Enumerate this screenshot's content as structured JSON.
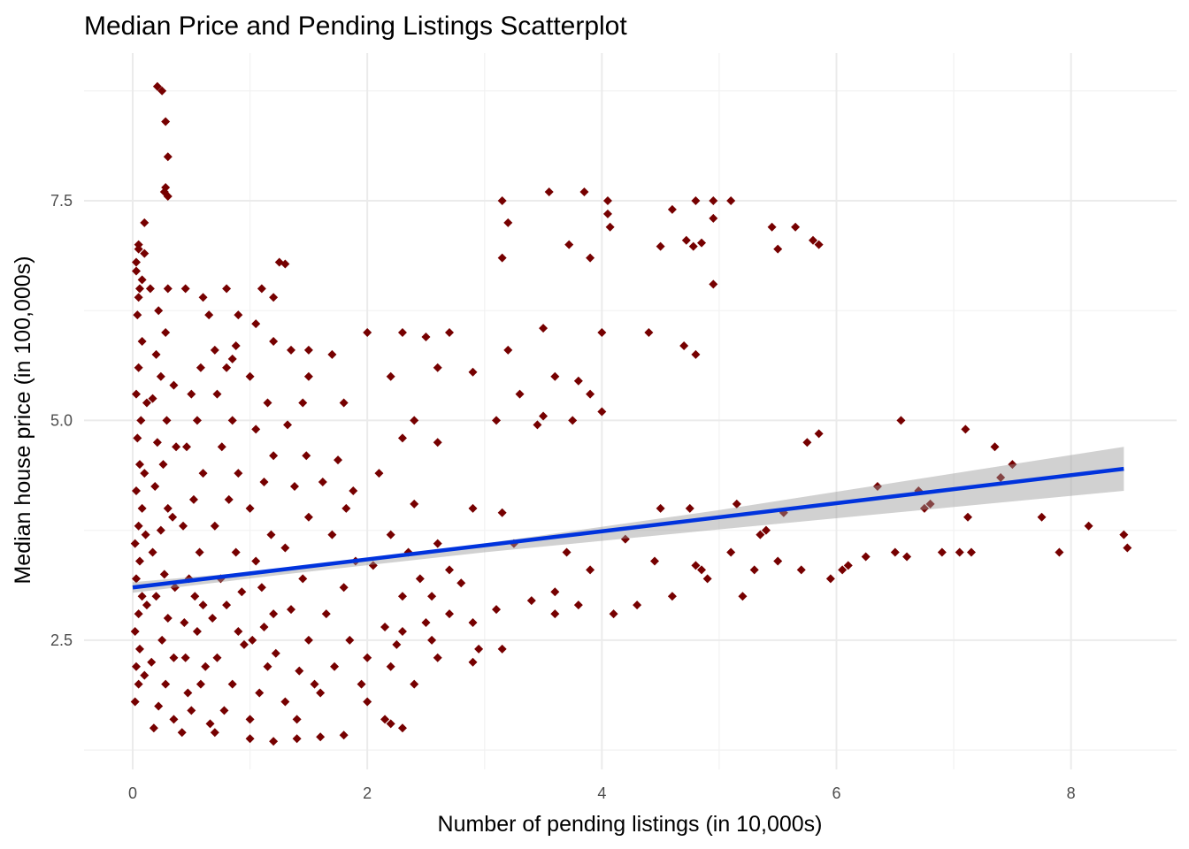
{
  "chart_data": {
    "type": "scatter",
    "title": "Median Price and Pending Listings Scatterplot",
    "xlabel": "Number of pending listings (in 10,000s)",
    "ylabel": "Median house price (in 100,000s)",
    "xlim": [
      -0.415,
      8.9
    ],
    "ylim": [
      1.03,
      9.18
    ],
    "x_ticks": [
      0,
      2,
      4,
      6,
      8
    ],
    "x_tick_labels": [
      "0",
      "2",
      "4",
      "6",
      "8"
    ],
    "x_minor": [
      1,
      3,
      5,
      7
    ],
    "y_ticks": [
      2.5,
      5.0,
      7.5
    ],
    "y_tick_labels": [
      "2.5",
      "5.0",
      "7.5"
    ],
    "y_minor": [
      1.25,
      3.75,
      6.25,
      8.75
    ],
    "grid": true,
    "legend": "none",
    "point_color": "#760000",
    "line_color": "#0033dd",
    "band_color": "#999999",
    "regression": {
      "x": [
        0,
        8.45
      ],
      "y": [
        3.1,
        4.45
      ]
    },
    "confidence_band": [
      [
        0,
        3.04,
        3.16
      ],
      [
        1.3,
        3.25,
        3.31
      ],
      [
        3,
        3.5,
        3.6
      ],
      [
        5,
        3.76,
        3.98
      ],
      [
        8.45,
        4.2,
        4.7
      ]
    ],
    "points": [
      [
        0.21,
        8.8
      ],
      [
        0.25,
        8.75
      ],
      [
        0.28,
        8.4
      ],
      [
        0.3,
        8.0
      ],
      [
        0.28,
        7.65
      ],
      [
        0.3,
        7.55
      ],
      [
        0.27,
        7.6
      ],
      [
        0.1,
        7.25
      ],
      [
        0.05,
        7.0
      ],
      [
        0.1,
        6.9
      ],
      [
        0.03,
        6.8
      ],
      [
        0.08,
        6.6
      ],
      [
        0.05,
        6.4
      ],
      [
        0.15,
        6.5
      ],
      [
        0.3,
        6.5
      ],
      [
        0.45,
        6.5
      ],
      [
        0.6,
        6.4
      ],
      [
        0.8,
        6.5
      ],
      [
        1.1,
        6.5
      ],
      [
        1.2,
        6.4
      ],
      [
        1.25,
        6.8
      ],
      [
        1.3,
        6.78
      ],
      [
        0.9,
        6.2
      ],
      [
        1.05,
        6.1
      ],
      [
        0.65,
        6.2
      ],
      [
        0.7,
        5.8
      ],
      [
        0.85,
        5.7
      ],
      [
        1.2,
        5.9
      ],
      [
        1.35,
        5.8
      ],
      [
        1.5,
        5.8
      ],
      [
        1.7,
        5.75
      ],
      [
        2.0,
        6.0
      ],
      [
        2.3,
        6.0
      ],
      [
        2.5,
        5.95
      ],
      [
        2.7,
        6.0
      ],
      [
        3.2,
        5.8
      ],
      [
        3.5,
        6.05
      ],
      [
        4.0,
        6.0
      ],
      [
        4.4,
        6.0
      ],
      [
        4.7,
        5.85
      ],
      [
        4.8,
        5.75
      ],
      [
        2.2,
        5.5
      ],
      [
        2.6,
        5.6
      ],
      [
        2.9,
        5.55
      ],
      [
        3.3,
        5.3
      ],
      [
        3.6,
        5.5
      ],
      [
        3.8,
        5.45
      ],
      [
        3.9,
        5.3
      ],
      [
        3.1,
        5.0
      ],
      [
        3.5,
        5.05
      ],
      [
        3.75,
        5.0
      ],
      [
        4.0,
        5.1
      ],
      [
        2.4,
        5.0
      ],
      [
        2.6,
        4.75
      ],
      [
        2.3,
        4.8
      ],
      [
        1.8,
        5.2
      ],
      [
        1.5,
        5.5
      ],
      [
        3.45,
        4.95
      ],
      [
        2.9,
        4.0
      ],
      [
        3.15,
        3.95
      ],
      [
        3.15,
        7.5
      ],
      [
        3.2,
        7.25
      ],
      [
        3.15,
        6.85
      ],
      [
        3.55,
        7.6
      ],
      [
        3.85,
        7.6
      ],
      [
        4.05,
        7.5
      ],
      [
        4.05,
        7.35
      ],
      [
        4.07,
        7.2
      ],
      [
        3.72,
        7.0
      ],
      [
        3.9,
        6.85
      ],
      [
        4.6,
        7.4
      ],
      [
        4.5,
        6.98
      ],
      [
        4.8,
        7.5
      ],
      [
        4.95,
        7.5
      ],
      [
        5.1,
        7.5
      ],
      [
        4.95,
        7.3
      ],
      [
        4.72,
        7.05
      ],
      [
        4.85,
        7.02
      ],
      [
        4.78,
        6.98
      ],
      [
        4.95,
        6.55
      ],
      [
        5.45,
        7.2
      ],
      [
        5.65,
        7.2
      ],
      [
        5.5,
        6.95
      ],
      [
        5.8,
        7.05
      ],
      [
        5.85,
        7.0
      ],
      [
        5.75,
        4.75
      ],
      [
        5.85,
        4.85
      ],
      [
        6.55,
        5.0
      ],
      [
        7.1,
        4.9
      ],
      [
        7.35,
        4.7
      ],
      [
        7.5,
        4.5
      ],
      [
        7.4,
        4.35
      ],
      [
        6.35,
        4.25
      ],
      [
        6.7,
        4.2
      ],
      [
        6.8,
        4.05
      ],
      [
        6.75,
        4.0
      ],
      [
        7.12,
        3.9
      ],
      [
        7.75,
        3.9
      ],
      [
        8.15,
        3.8
      ],
      [
        8.45,
        3.7
      ],
      [
        8.48,
        3.55
      ],
      [
        7.9,
        3.5
      ],
      [
        6.9,
        3.5
      ],
      [
        7.05,
        3.5
      ],
      [
        7.15,
        3.5
      ],
      [
        6.5,
        3.5
      ],
      [
        6.6,
        3.45
      ],
      [
        6.25,
        3.45
      ],
      [
        6.1,
        3.35
      ],
      [
        5.95,
        3.2
      ],
      [
        5.7,
        3.3
      ],
      [
        5.5,
        3.4
      ],
      [
        5.3,
        3.3
      ],
      [
        5.1,
        3.5
      ],
      [
        4.9,
        3.2
      ],
      [
        4.6,
        3.0
      ],
      [
        4.3,
        2.9
      ],
      [
        4.1,
        2.8
      ],
      [
        3.8,
        2.9
      ],
      [
        3.6,
        2.8
      ],
      [
        3.4,
        2.95
      ],
      [
        3.1,
        2.85
      ],
      [
        2.9,
        2.7
      ],
      [
        2.7,
        2.8
      ],
      [
        2.5,
        2.7
      ],
      [
        2.3,
        2.6
      ],
      [
        4.5,
        4.0
      ],
      [
        4.75,
        4.0
      ],
      [
        5.15,
        4.05
      ],
      [
        5.55,
        3.95
      ],
      [
        5.4,
        3.75
      ],
      [
        5.35,
        3.7
      ],
      [
        4.2,
        3.65
      ],
      [
        3.9,
        3.3
      ],
      [
        3.6,
        3.05
      ],
      [
        4.45,
        3.4
      ],
      [
        4.8,
        3.35
      ],
      [
        5.2,
        3.0
      ],
      [
        3.25,
        3.6
      ],
      [
        3.7,
        3.5
      ],
      [
        6.05,
        3.3
      ],
      [
        4.85,
        3.3
      ],
      [
        1.0,
        1.38
      ],
      [
        1.2,
        1.35
      ],
      [
        1.4,
        1.38
      ],
      [
        1.6,
        1.4
      ],
      [
        1.8,
        1.42
      ],
      [
        2.2,
        1.55
      ],
      [
        2.3,
        1.5
      ],
      [
        2.15,
        1.6
      ],
      [
        2.0,
        1.8
      ],
      [
        2.4,
        2.0
      ],
      [
        2.2,
        2.2
      ],
      [
        2.6,
        2.3
      ],
      [
        2.9,
        2.25
      ],
      [
        3.15,
        2.4
      ],
      [
        2.55,
        2.5
      ],
      [
        2.95,
        2.4
      ],
      [
        0.02,
        1.8
      ],
      [
        0.05,
        2.0
      ],
      [
        0.03,
        2.2
      ],
      [
        0.06,
        2.4
      ],
      [
        0.02,
        2.6
      ],
      [
        0.05,
        2.8
      ],
      [
        0.08,
        3.0
      ],
      [
        0.03,
        3.2
      ],
      [
        0.06,
        3.4
      ],
      [
        0.02,
        3.6
      ],
      [
        0.05,
        3.8
      ],
      [
        0.08,
        4.0
      ],
      [
        0.03,
        4.2
      ],
      [
        0.06,
        4.5
      ],
      [
        0.04,
        4.8
      ],
      [
        0.07,
        5.0
      ],
      [
        0.03,
        5.3
      ],
      [
        0.05,
        5.6
      ],
      [
        0.08,
        5.9
      ],
      [
        0.04,
        6.2
      ],
      [
        0.06,
        6.5
      ],
      [
        0.03,
        6.7
      ],
      [
        0.05,
        6.95
      ],
      [
        0.1,
        2.1
      ],
      [
        0.12,
        2.9
      ],
      [
        0.11,
        3.7
      ],
      [
        0.1,
        4.4
      ],
      [
        0.12,
        5.2
      ],
      [
        0.18,
        1.5
      ],
      [
        0.22,
        1.75
      ],
      [
        0.28,
        2.0
      ],
      [
        0.16,
        2.25
      ],
      [
        0.25,
        2.5
      ],
      [
        0.3,
        2.75
      ],
      [
        0.2,
        3.0
      ],
      [
        0.27,
        3.25
      ],
      [
        0.17,
        3.5
      ],
      [
        0.24,
        3.75
      ],
      [
        0.3,
        4.0
      ],
      [
        0.19,
        4.25
      ],
      [
        0.26,
        4.5
      ],
      [
        0.21,
        4.75
      ],
      [
        0.29,
        5.0
      ],
      [
        0.17,
        5.25
      ],
      [
        0.24,
        5.5
      ],
      [
        0.2,
        5.75
      ],
      [
        0.28,
        6.0
      ],
      [
        0.22,
        6.25
      ],
      [
        0.35,
        1.6
      ],
      [
        0.35,
        2.3
      ],
      [
        0.36,
        3.1
      ],
      [
        0.34,
        3.9
      ],
      [
        0.37,
        4.7
      ],
      [
        0.35,
        5.4
      ],
      [
        0.42,
        1.45
      ],
      [
        0.5,
        1.7
      ],
      [
        0.58,
        2.0
      ],
      [
        0.45,
        2.3
      ],
      [
        0.55,
        2.6
      ],
      [
        0.6,
        2.9
      ],
      [
        0.48,
        3.2
      ],
      [
        0.57,
        3.5
      ],
      [
        0.43,
        3.8
      ],
      [
        0.52,
        4.1
      ],
      [
        0.6,
        4.4
      ],
      [
        0.46,
        4.7
      ],
      [
        0.55,
        5.0
      ],
      [
        0.5,
        5.3
      ],
      [
        0.58,
        5.6
      ],
      [
        0.47,
        1.9
      ],
      [
        0.62,
        2.2
      ],
      [
        0.44,
        2.7
      ],
      [
        0.53,
        3.0
      ],
      [
        0.7,
        1.45
      ],
      [
        0.78,
        1.7
      ],
      [
        0.85,
        2.0
      ],
      [
        0.72,
        2.3
      ],
      [
        0.9,
        2.6
      ],
      [
        0.8,
        2.9
      ],
      [
        0.75,
        3.2
      ],
      [
        0.88,
        3.5
      ],
      [
        0.7,
        3.8
      ],
      [
        0.82,
        4.1
      ],
      [
        0.9,
        4.4
      ],
      [
        0.76,
        4.7
      ],
      [
        0.85,
        5.0
      ],
      [
        0.72,
        5.3
      ],
      [
        0.8,
        5.6
      ],
      [
        0.88,
        5.85
      ],
      [
        0.66,
        1.55
      ],
      [
        0.95,
        2.45
      ],
      [
        0.68,
        2.75
      ],
      [
        0.93,
        3.05
      ],
      [
        1.0,
        1.6
      ],
      [
        1.08,
        1.9
      ],
      [
        1.15,
        2.2
      ],
      [
        1.02,
        2.5
      ],
      [
        1.2,
        2.8
      ],
      [
        1.1,
        3.1
      ],
      [
        1.05,
        3.4
      ],
      [
        1.18,
        3.7
      ],
      [
        1.0,
        4.0
      ],
      [
        1.12,
        4.3
      ],
      [
        1.2,
        4.6
      ],
      [
        1.05,
        4.9
      ],
      [
        1.15,
        5.2
      ],
      [
        1.0,
        5.5
      ],
      [
        1.22,
        2.35
      ],
      [
        1.12,
        2.65
      ],
      [
        1.3,
        1.8
      ],
      [
        1.42,
        2.15
      ],
      [
        1.5,
        2.5
      ],
      [
        1.35,
        2.85
      ],
      [
        1.45,
        3.2
      ],
      [
        1.3,
        3.55
      ],
      [
        1.5,
        3.9
      ],
      [
        1.38,
        4.25
      ],
      [
        1.48,
        4.6
      ],
      [
        1.32,
        4.95
      ],
      [
        1.45,
        5.2
      ],
      [
        1.55,
        2.0
      ],
      [
        1.4,
        1.6
      ],
      [
        1.6,
        1.9
      ],
      [
        1.72,
        2.2
      ],
      [
        1.85,
        2.5
      ],
      [
        1.65,
        2.8
      ],
      [
        1.8,
        3.1
      ],
      [
        1.9,
        3.4
      ],
      [
        1.7,
        3.7
      ],
      [
        1.82,
        4.0
      ],
      [
        1.62,
        4.3
      ],
      [
        1.75,
        4.55
      ],
      [
        1.88,
        4.2
      ],
      [
        1.95,
        2.0
      ],
      [
        2.0,
        2.3
      ],
      [
        2.15,
        2.65
      ],
      [
        2.3,
        3.0
      ],
      [
        2.05,
        3.35
      ],
      [
        2.2,
        3.7
      ],
      [
        2.4,
        4.05
      ],
      [
        2.1,
        4.4
      ],
      [
        2.35,
        3.5
      ],
      [
        2.45,
        3.2
      ],
      [
        2.25,
        2.45
      ],
      [
        2.55,
        3.0
      ],
      [
        2.7,
        3.3
      ],
      [
        2.8,
        3.15
      ],
      [
        2.6,
        3.6
      ]
    ]
  }
}
